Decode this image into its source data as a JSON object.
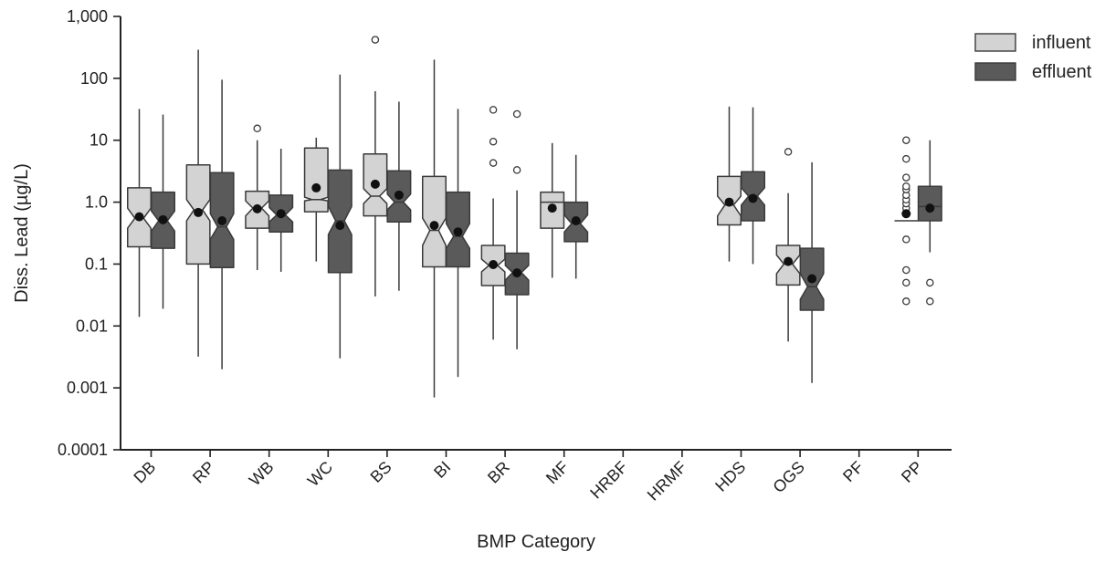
{
  "chart_data": {
    "type": "box",
    "title": "",
    "xlabel": "BMP Category",
    "ylabel": "Diss. Lead (µg/L)",
    "yscale": "log",
    "ylim": [
      0.0001,
      1000
    ],
    "y_ticks": [
      {
        "value": 0.0001,
        "label": "0.0001"
      },
      {
        "value": 0.001,
        "label": "0.001"
      },
      {
        "value": 0.01,
        "label": "0.01"
      },
      {
        "value": 0.1,
        "label": "0.1"
      },
      {
        "value": 1,
        "label": "1.0"
      },
      {
        "value": 10,
        "label": "10"
      },
      {
        "value": 100,
        "label": "100"
      },
      {
        "value": 1000,
        "label": "1,000"
      }
    ],
    "categories": [
      "DB",
      "RP",
      "WB",
      "WC",
      "BS",
      "BI",
      "BR",
      "MF",
      "HRBF",
      "HRMF",
      "HDS",
      "OGS",
      "PF",
      "PP"
    ],
    "legend": {
      "position": "top-right"
    },
    "series": [
      {
        "name": "influent",
        "color": "#d3d3d3",
        "boxes": [
          {
            "cat": "DB",
            "whislo": 0.014,
            "q1": 0.19,
            "med": 0.55,
            "q3": 1.7,
            "whishi": 32,
            "ci": [
              0.38,
              0.8
            ],
            "mean": 0.58,
            "fliers": []
          },
          {
            "cat": "RP",
            "whislo": 0.0032,
            "q1": 0.1,
            "med": 0.75,
            "q3": 4.0,
            "whishi": 290,
            "ci": [
              0.5,
              1.1
            ],
            "mean": 0.68,
            "fliers": []
          },
          {
            "cat": "WB",
            "whislo": 0.08,
            "q1": 0.38,
            "med": 0.8,
            "q3": 1.5,
            "whishi": 10,
            "ci": [
              0.6,
              1.05
            ],
            "mean": 0.78,
            "fliers": [
              15.5
            ]
          },
          {
            "cat": "WC",
            "whislo": 0.11,
            "q1": 0.7,
            "med": 1.1,
            "q3": 7.5,
            "whishi": 11,
            "ci": [
              1.05,
              1.2
            ],
            "mean": 1.7,
            "fliers": []
          },
          {
            "cat": "BS",
            "whislo": 0.03,
            "q1": 0.6,
            "med": 1.25,
            "q3": 6.0,
            "whishi": 62,
            "ci": [
              0.95,
              1.65
            ],
            "mean": 1.95,
            "fliers": [
              420
            ]
          },
          {
            "cat": "BI",
            "whislo": 0.0007,
            "q1": 0.09,
            "med": 0.35,
            "q3": 2.6,
            "whishi": 200,
            "ci": [
              0.2,
              0.55
            ],
            "mean": 0.42,
            "fliers": []
          },
          {
            "cat": "BR",
            "whislo": 0.006,
            "q1": 0.045,
            "med": 0.095,
            "q3": 0.2,
            "whishi": 1.15,
            "ci": [
              0.075,
              0.12
            ],
            "mean": 0.098,
            "fliers": [
              4.3,
              9.5,
              31
            ]
          },
          {
            "cat": "MF",
            "whislo": 0.06,
            "q1": 0.38,
            "med": 1.0,
            "q3": 1.45,
            "whishi": 9.0,
            "ci": [
              1.0,
              1.0
            ],
            "mean": 0.8,
            "fliers": []
          },
          {
            "cat": "HDS",
            "whislo": 0.11,
            "q1": 0.43,
            "med": 0.9,
            "q3": 2.6,
            "whishi": 35,
            "ci": [
              0.6,
              1.25
            ],
            "mean": 1.0,
            "fliers": []
          },
          {
            "cat": "OGS",
            "whislo": 0.0056,
            "q1": 0.046,
            "med": 0.1,
            "q3": 0.2,
            "whishi": 1.4,
            "ci": [
              0.07,
              0.14
            ],
            "mean": 0.11,
            "fliers": [
              6.5
            ]
          },
          {
            "cat": "PP",
            "whislo": 0.5,
            "q1": 0.5,
            "med": 0.5,
            "q3": 0.5,
            "whishi": 0.5,
            "ci": [
              0.5,
              0.5
            ],
            "mean": 0.65,
            "fliers": [
              0.025,
              0.05,
              0.08,
              0.25,
              0.65,
              0.8,
              0.95,
              1.1,
              1.3,
              1.6,
              1.8,
              2.5,
              5,
              10
            ]
          }
        ]
      },
      {
        "name": "effluent",
        "color": "#5a5a5a",
        "boxes": [
          {
            "cat": "DB",
            "whislo": 0.019,
            "q1": 0.18,
            "med": 0.5,
            "q3": 1.45,
            "whishi": 26,
            "ci": [
              0.34,
              0.72
            ],
            "mean": 0.52,
            "fliers": []
          },
          {
            "cat": "RP",
            "whislo": 0.002,
            "q1": 0.088,
            "med": 0.4,
            "q3": 3.0,
            "whishi": 95,
            "ci": [
              0.25,
              0.65
            ],
            "mean": 0.5,
            "fliers": []
          },
          {
            "cat": "WB",
            "whislo": 0.075,
            "q1": 0.33,
            "med": 0.62,
            "q3": 1.3,
            "whishi": 7.3,
            "ci": [
              0.48,
              0.82
            ],
            "mean": 0.65,
            "fliers": []
          },
          {
            "cat": "WC",
            "whislo": 0.003,
            "q1": 0.073,
            "med": 0.5,
            "q3": 3.3,
            "whishi": 115,
            "ci": [
              0.3,
              0.85
            ],
            "mean": 0.42,
            "fliers": []
          },
          {
            "cat": "BS",
            "whislo": 0.037,
            "q1": 0.48,
            "med": 1.0,
            "q3": 3.2,
            "whishi": 42,
            "ci": [
              0.75,
              1.35
            ],
            "mean": 1.3,
            "fliers": []
          },
          {
            "cat": "BI",
            "whislo": 0.0015,
            "q1": 0.09,
            "med": 0.28,
            "q3": 1.45,
            "whishi": 32,
            "ci": [
              0.18,
              0.45
            ],
            "mean": 0.33,
            "fliers": []
          },
          {
            "cat": "BR",
            "whislo": 0.0042,
            "q1": 0.032,
            "med": 0.073,
            "q3": 0.15,
            "whishi": 1.55,
            "ci": [
              0.055,
              0.095
            ],
            "mean": 0.072,
            "fliers": [
              3.3,
              26.5
            ]
          },
          {
            "cat": "MF",
            "whislo": 0.058,
            "q1": 0.23,
            "med": 0.45,
            "q3": 1.0,
            "whishi": 5.8,
            "ci": [
              0.33,
              0.62
            ],
            "mean": 0.5,
            "fliers": []
          },
          {
            "cat": "HDS",
            "whislo": 0.1,
            "q1": 0.5,
            "med": 1.25,
            "q3": 3.1,
            "whishi": 34,
            "ci": [
              0.9,
              1.7
            ],
            "mean": 1.15,
            "fliers": []
          },
          {
            "cat": "OGS",
            "whislo": 0.0012,
            "q1": 0.018,
            "med": 0.043,
            "q3": 0.18,
            "whishi": 4.4,
            "ci": [
              0.027,
              0.07
            ],
            "mean": 0.058,
            "fliers": []
          },
          {
            "cat": "PP",
            "whislo": 0.155,
            "q1": 0.5,
            "med": 0.85,
            "q3": 1.8,
            "whishi": 10,
            "ci": [
              0.85,
              0.85
            ],
            "mean": 0.8,
            "fliers": [
              0.025,
              0.05
            ]
          }
        ]
      }
    ]
  }
}
